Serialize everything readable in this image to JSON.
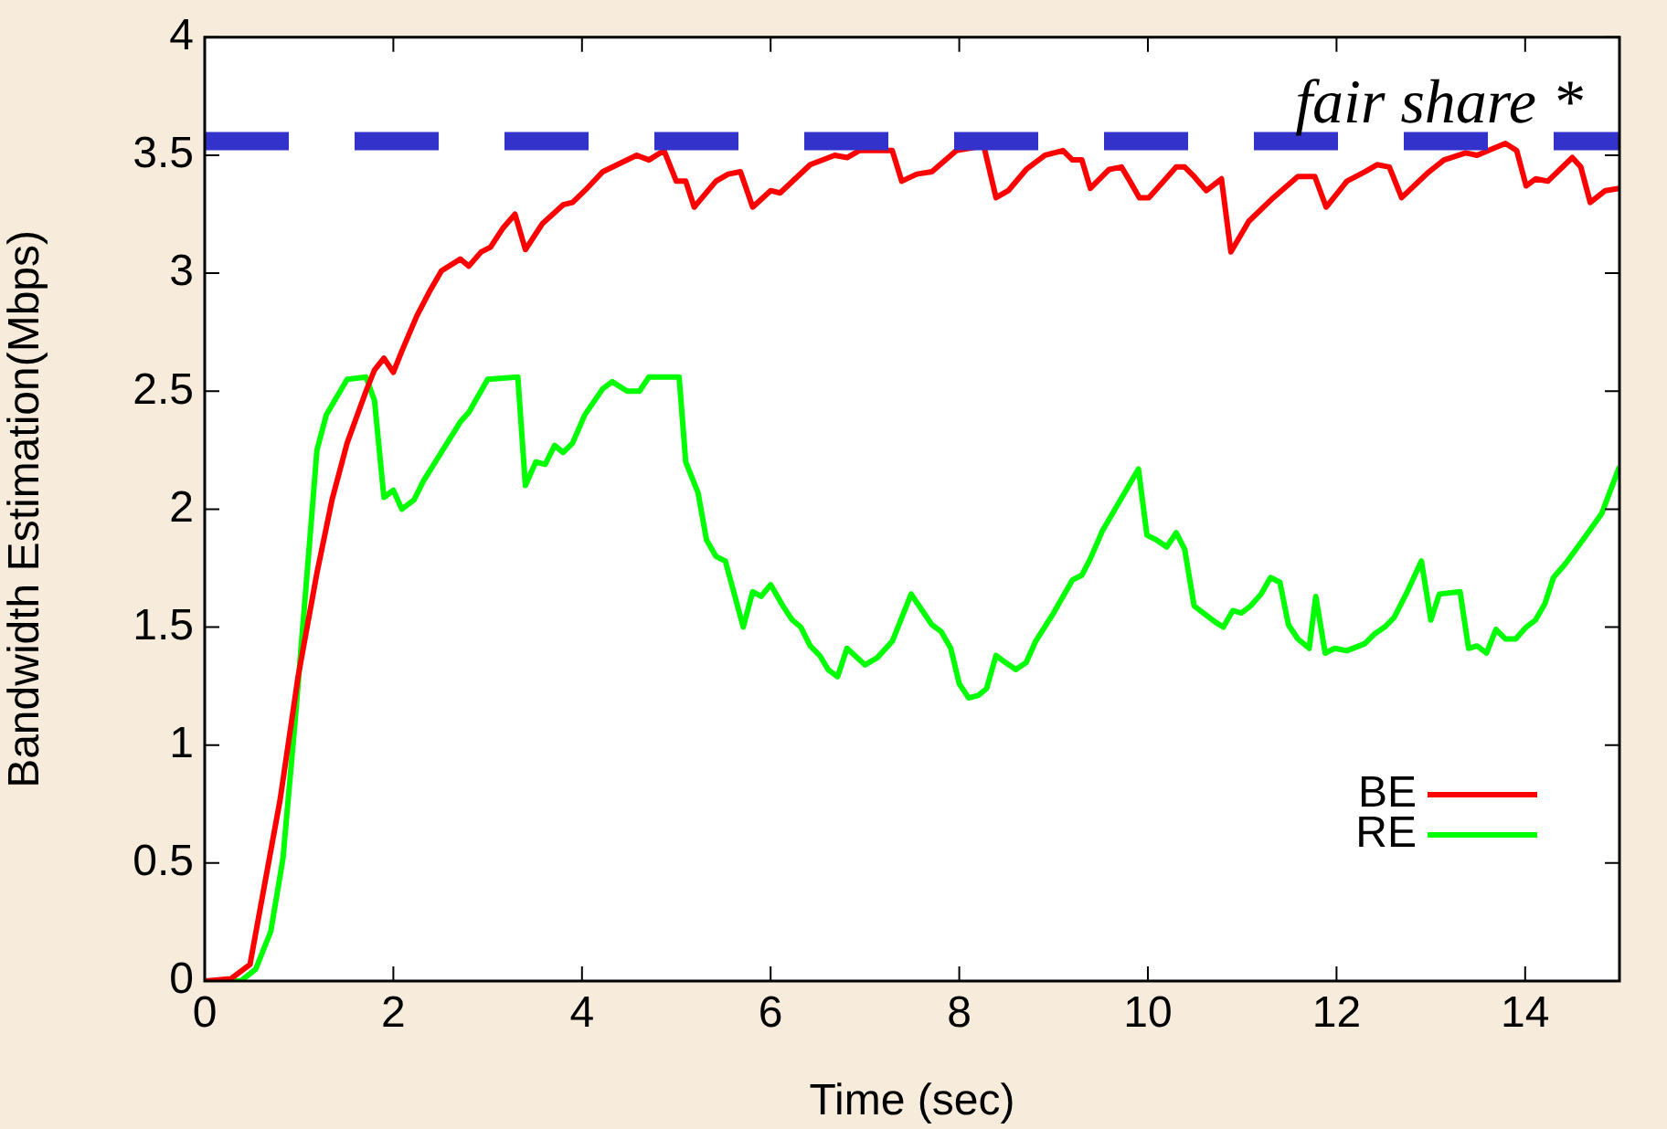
{
  "chart_data": {
    "type": "line",
    "xlabel": "Time (sec)",
    "ylabel": "Bandwidth Estimation(Mbps)",
    "xlim": [
      0,
      15
    ],
    "xticks": [
      0,
      2,
      4,
      6,
      8,
      10,
      12,
      14
    ],
    "ylim": [
      0,
      4
    ],
    "yticks": [
      0,
      0.5,
      1,
      1.5,
      2,
      2.5,
      3,
      3.5,
      4
    ],
    "grid": false,
    "legend": "bottom right",
    "marker": "none",
    "line_style": "solid",
    "ref_lines": [
      {
        "axis": "y",
        "value": 3.56,
        "label": "fair share *",
        "color": "#3333cc",
        "line_style": "dashed"
      }
    ],
    "series": [
      {
        "name": "BE",
        "color": "#ff0000",
        "x": [
          0,
          0.28,
          0.48,
          0.8,
          0.99,
          1.19,
          1.35,
          1.51,
          1.71,
          1.8,
          1.9,
          2.0,
          2.09,
          2.25,
          2.38,
          2.51,
          2.71,
          2.8,
          2.93,
          3.03,
          3.16,
          3.29,
          3.4,
          3.58,
          3.8,
          3.9,
          4.03,
          4.22,
          4.58,
          4.71,
          4.87,
          5.0,
          5.1,
          5.19,
          5.42,
          5.55,
          5.68,
          5.81,
          6.0,
          6.1,
          6.42,
          6.68,
          6.81,
          6.94,
          7.29,
          7.39,
          7.55,
          7.71,
          7.97,
          8.26,
          8.39,
          8.52,
          8.71,
          8.91,
          9.1,
          9.2,
          9.3,
          9.39,
          9.59,
          9.72,
          9.81,
          9.91,
          10.01,
          10.3,
          10.39,
          10.49,
          10.62,
          10.78,
          10.88,
          11.07,
          11.33,
          11.59,
          11.77,
          11.89,
          12.11,
          12.3,
          12.43,
          12.56,
          12.69,
          12.98,
          13.14,
          13.37,
          13.49,
          13.79,
          13.91,
          14.01,
          14.11,
          14.24,
          14.5,
          14.59,
          14.69,
          14.85,
          15.0
        ],
        "values": [
          0,
          0.01,
          0.07,
          0.77,
          1.29,
          1.73,
          2.04,
          2.28,
          2.5,
          2.59,
          2.64,
          2.58,
          2.67,
          2.82,
          2.92,
          3.01,
          3.06,
          3.03,
          3.09,
          3.11,
          3.19,
          3.25,
          3.1,
          3.21,
          3.29,
          3.3,
          3.35,
          3.43,
          3.5,
          3.48,
          3.52,
          3.39,
          3.39,
          3.28,
          3.39,
          3.42,
          3.43,
          3.28,
          3.35,
          3.34,
          3.46,
          3.5,
          3.49,
          3.52,
          3.52,
          3.39,
          3.42,
          3.43,
          3.52,
          3.54,
          3.32,
          3.35,
          3.44,
          3.5,
          3.52,
          3.48,
          3.48,
          3.36,
          3.44,
          3.45,
          3.39,
          3.32,
          3.32,
          3.45,
          3.45,
          3.41,
          3.35,
          3.4,
          3.09,
          3.22,
          3.32,
          3.41,
          3.41,
          3.28,
          3.39,
          3.43,
          3.46,
          3.45,
          3.32,
          3.43,
          3.48,
          3.51,
          3.5,
          3.55,
          3.52,
          3.37,
          3.4,
          3.39,
          3.49,
          3.45,
          3.3,
          3.35,
          3.36
        ]
      },
      {
        "name": "RE",
        "color": "#00ff00",
        "x": [
          0,
          0.38,
          0.54,
          0.7,
          0.83,
          0.96,
          1.09,
          1.19,
          1.29,
          1.51,
          1.71,
          1.8,
          1.9,
          2.0,
          2.09,
          2.22,
          2.32,
          2.71,
          2.8,
          3.0,
          3.32,
          3.4,
          3.51,
          3.61,
          3.71,
          3.8,
          3.9,
          4.03,
          4.22,
          4.32,
          4.48,
          4.61,
          4.71,
          5.03,
          5.1,
          5.23,
          5.32,
          5.42,
          5.52,
          5.71,
          5.81,
          5.9,
          6.0,
          6.13,
          6.23,
          6.32,
          6.42,
          6.52,
          6.61,
          6.71,
          6.81,
          7.0,
          7.13,
          7.29,
          7.49,
          7.71,
          7.81,
          7.91,
          8.0,
          8.1,
          8.2,
          8.29,
          8.39,
          8.49,
          8.6,
          8.71,
          8.81,
          9.0,
          9.2,
          9.3,
          9.39,
          9.52,
          9.9,
          9.99,
          10.09,
          10.2,
          10.3,
          10.39,
          10.49,
          10.62,
          10.72,
          10.8,
          10.9,
          10.99,
          11.09,
          11.2,
          11.3,
          11.4,
          11.49,
          11.59,
          11.71,
          11.78,
          11.88,
          11.98,
          12.11,
          12.3,
          12.4,
          12.51,
          12.61,
          12.75,
          12.9,
          13.0,
          13.09,
          13.31,
          13.4,
          13.49,
          13.59,
          13.69,
          13.79,
          13.9,
          14.01,
          14.11,
          14.21,
          14.3,
          14.43,
          14.63,
          14.81,
          15.0
        ],
        "values": [
          0,
          0,
          0.05,
          0.21,
          0.52,
          1.11,
          1.75,
          2.25,
          2.4,
          2.55,
          2.56,
          2.46,
          2.05,
          2.08,
          2.0,
          2.04,
          2.12,
          2.37,
          2.41,
          2.55,
          2.56,
          2.1,
          2.2,
          2.19,
          2.27,
          2.24,
          2.28,
          2.4,
          2.51,
          2.54,
          2.5,
          2.5,
          2.56,
          2.56,
          2.2,
          2.07,
          1.87,
          1.8,
          1.78,
          1.5,
          1.65,
          1.63,
          1.68,
          1.59,
          1.53,
          1.5,
          1.42,
          1.38,
          1.32,
          1.29,
          1.41,
          1.34,
          1.37,
          1.44,
          1.64,
          1.51,
          1.48,
          1.41,
          1.26,
          1.2,
          1.21,
          1.24,
          1.38,
          1.35,
          1.32,
          1.35,
          1.44,
          1.56,
          1.7,
          1.72,
          1.79,
          1.91,
          2.17,
          1.89,
          1.87,
          1.84,
          1.9,
          1.83,
          1.59,
          1.55,
          1.52,
          1.5,
          1.57,
          1.56,
          1.59,
          1.64,
          1.71,
          1.69,
          1.51,
          1.45,
          1.41,
          1.63,
          1.39,
          1.41,
          1.4,
          1.43,
          1.47,
          1.5,
          1.54,
          1.65,
          1.78,
          1.53,
          1.64,
          1.65,
          1.41,
          1.42,
          1.39,
          1.49,
          1.45,
          1.45,
          1.5,
          1.53,
          1.6,
          1.71,
          1.77,
          1.88,
          1.98,
          2.18
        ]
      }
    ]
  }
}
